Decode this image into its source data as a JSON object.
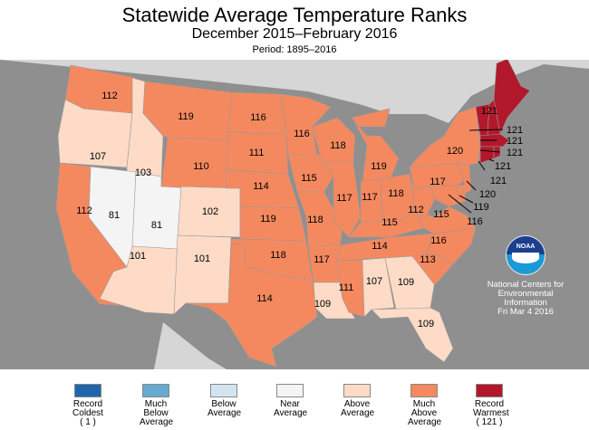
{
  "header": {
    "title": "Statewide Average Temperature Ranks",
    "subtitle": "December 2015–February 2016",
    "period": "Period: 1895–2016"
  },
  "colors": {
    "background": "#8f8f8f",
    "canada": "#d6d6d6",
    "record_coldest": "#2166ac",
    "much_below": "#67a9cf",
    "below": "#d1e5f0",
    "near": "#f4f4f4",
    "above": "#fddbc7",
    "much_above": "#f4895f",
    "record_warmest": "#b2182b"
  },
  "states": [
    {
      "id": "WA",
      "rank": "112",
      "cat": "much_above"
    },
    {
      "id": "OR",
      "rank": "107",
      "cat": "above"
    },
    {
      "id": "CA",
      "rank": "112",
      "cat": "much_above"
    },
    {
      "id": "ID",
      "rank": "103",
      "cat": "above"
    },
    {
      "id": "NV",
      "rank": "81",
      "cat": "near"
    },
    {
      "id": "UT",
      "rank": "81",
      "cat": "near"
    },
    {
      "id": "AZ",
      "rank": "101",
      "cat": "above"
    },
    {
      "id": "MT",
      "rank": "119",
      "cat": "much_above"
    },
    {
      "id": "WY",
      "rank": "110",
      "cat": "much_above"
    },
    {
      "id": "CO",
      "rank": "102",
      "cat": "above"
    },
    {
      "id": "NM",
      "rank": "101",
      "cat": "above"
    },
    {
      "id": "ND",
      "rank": "116",
      "cat": "much_above"
    },
    {
      "id": "SD",
      "rank": "111",
      "cat": "much_above"
    },
    {
      "id": "NE",
      "rank": "114",
      "cat": "much_above"
    },
    {
      "id": "KS",
      "rank": "119",
      "cat": "much_above"
    },
    {
      "id": "OK",
      "rank": "118",
      "cat": "much_above"
    },
    {
      "id": "TX",
      "rank": "114",
      "cat": "much_above"
    },
    {
      "id": "MN",
      "rank": "116",
      "cat": "much_above"
    },
    {
      "id": "IA",
      "rank": "115",
      "cat": "much_above"
    },
    {
      "id": "MO",
      "rank": "118",
      "cat": "much_above"
    },
    {
      "id": "AR",
      "rank": "117",
      "cat": "much_above"
    },
    {
      "id": "LA",
      "rank": "109",
      "cat": "above"
    },
    {
      "id": "WI",
      "rank": "118",
      "cat": "much_above"
    },
    {
      "id": "IL",
      "rank": "117",
      "cat": "much_above"
    },
    {
      "id": "MI",
      "rank": "119",
      "cat": "much_above"
    },
    {
      "id": "IN",
      "rank": "117",
      "cat": "much_above"
    },
    {
      "id": "OH",
      "rank": "118",
      "cat": "much_above"
    },
    {
      "id": "KY",
      "rank": "115",
      "cat": "much_above"
    },
    {
      "id": "TN",
      "rank": "114",
      "cat": "much_above"
    },
    {
      "id": "MS",
      "rank": "111",
      "cat": "much_above"
    },
    {
      "id": "AL",
      "rank": "107",
      "cat": "above"
    },
    {
      "id": "GA",
      "rank": "109",
      "cat": "above"
    },
    {
      "id": "FL",
      "rank": "109",
      "cat": "above"
    },
    {
      "id": "SC",
      "rank": "113",
      "cat": "much_above"
    },
    {
      "id": "NC",
      "rank": "116",
      "cat": "much_above"
    },
    {
      "id": "VA",
      "rank": "115",
      "cat": "much_above"
    },
    {
      "id": "WV",
      "rank": "112",
      "cat": "much_above"
    },
    {
      "id": "PA",
      "rank": "117",
      "cat": "much_above"
    },
    {
      "id": "NY",
      "rank": "120",
      "cat": "much_above"
    },
    {
      "id": "ME",
      "rank": "121",
      "cat": "record_warmest"
    },
    {
      "id": "NH",
      "rank": "121",
      "cat": "record_warmest"
    },
    {
      "id": "VT",
      "rank": "121",
      "cat": "record_warmest"
    },
    {
      "id": "MA",
      "rank": "121",
      "cat": "record_warmest"
    },
    {
      "id": "RI",
      "rank": "121",
      "cat": "record_warmest"
    },
    {
      "id": "CT",
      "rank": "121",
      "cat": "record_warmest"
    },
    {
      "id": "NJ",
      "rank": "120",
      "cat": "much_above"
    },
    {
      "id": "DE",
      "rank": "119",
      "cat": "much_above"
    },
    {
      "id": "MD",
      "rank": "116",
      "cat": "much_above"
    }
  ],
  "legend": [
    {
      "label": "Record Coldest",
      "sub": "( 1 )",
      "cat": "record_coldest"
    },
    {
      "label": "Much Below Average",
      "sub": "",
      "cat": "much_below"
    },
    {
      "label": "Below Average",
      "sub": "",
      "cat": "below"
    },
    {
      "label": "Near Average",
      "sub": "",
      "cat": "near"
    },
    {
      "label": "Above Average",
      "sub": "",
      "cat": "above"
    },
    {
      "label": "Much Above Average",
      "sub": "",
      "cat": "much_above"
    },
    {
      "label": "Record Warmest",
      "sub": "( 121 )",
      "cat": "record_warmest"
    }
  ],
  "credit": {
    "logo_text": "NOAA",
    "line1": "National Centers for",
    "line2": "Environmental",
    "line3": "Information",
    "date": "Fri Mar  4 2016"
  }
}
